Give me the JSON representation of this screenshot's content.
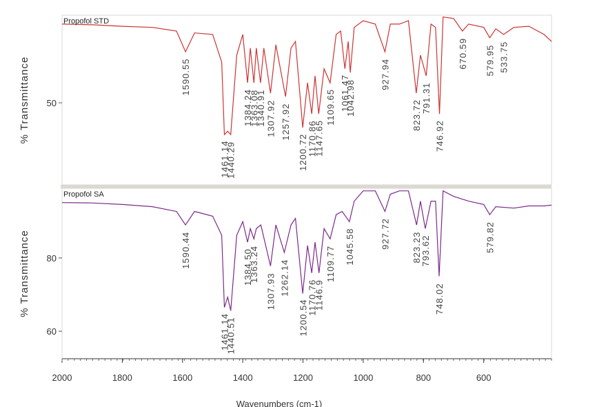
{
  "chart_data": [
    {
      "type": "line",
      "ylabel": "% Transmittance",
      "xlim": [
        2000,
        375
      ],
      "ylim": [
        27.8,
        73.7
      ],
      "yticks": [
        50
      ],
      "x": [
        2000,
        1900,
        1800,
        1700,
        1620,
        1590,
        1560,
        1500,
        1470,
        1461,
        1450,
        1440,
        1420,
        1400,
        1384,
        1375,
        1363,
        1355,
        1341,
        1330,
        1308,
        1290,
        1258,
        1240,
        1225,
        1201,
        1185,
        1171,
        1160,
        1148,
        1130,
        1110,
        1090,
        1075,
        1061,
        1050,
        1043,
        1030,
        1000,
        960,
        928,
        910,
        880,
        850,
        824,
        810,
        791,
        775,
        760,
        747,
        735,
        700,
        671,
        650,
        600,
        580,
        560,
        534,
        500,
        450,
        400,
        375
      ],
      "series": [
        {
          "name": "Propofol STD",
          "color": "#cc3333",
          "values": [
            71.3,
            71.1,
            70.7,
            70.4,
            69.4,
            63.8,
            68.9,
            68.5,
            61.0,
            41.4,
            42.3,
            41.4,
            62.9,
            68.5,
            55.4,
            64.8,
            55.4,
            64.8,
            55.4,
            64.8,
            52.6,
            65.7,
            51.7,
            64.8,
            66.6,
            43.3,
            55.4,
            47.0,
            57.3,
            47.0,
            59.2,
            55.4,
            68.5,
            69.4,
            59.2,
            66.6,
            58.2,
            70.4,
            72.2,
            71.3,
            63.8,
            71.3,
            71.3,
            72.2,
            52.6,
            62.9,
            57.3,
            71.3,
            70.4,
            47.0,
            73.2,
            72.8,
            69.4,
            71.3,
            70.4,
            67.6,
            70.0,
            68.5,
            70.4,
            70.7,
            68.5,
            66.6
          ]
        }
      ],
      "peaks": [
        1590.55,
        1461.14,
        1440.29,
        1384.24,
        1363.08,
        1340.91,
        1307.92,
        1257.92,
        1200.72,
        1170.86,
        1147.65,
        1109.65,
        1061.47,
        1042.98,
        927.94,
        823.72,
        791.31,
        746.92,
        670.59,
        579.95,
        533.75
      ]
    },
    {
      "type": "line",
      "ylabel": "% Transmittance",
      "xlabel": "Wavenumbers (cm-1)",
      "xlim": [
        2000,
        375
      ],
      "ylim": [
        52.5,
        99
      ],
      "yticks": [
        60,
        80
      ],
      "xticks": [
        2000,
        1800,
        1600,
        1400,
        1200,
        1000,
        800,
        600
      ],
      "x": [
        2000,
        1900,
        1800,
        1700,
        1620,
        1590,
        1560,
        1500,
        1470,
        1461,
        1450,
        1440,
        1420,
        1400,
        1384,
        1375,
        1363,
        1355,
        1340,
        1308,
        1290,
        1262,
        1240,
        1225,
        1201,
        1185,
        1171,
        1160,
        1147,
        1130,
        1110,
        1090,
        1070,
        1046,
        1030,
        1000,
        960,
        928,
        910,
        880,
        850,
        823,
        810,
        794,
        775,
        760,
        748,
        735,
        700,
        650,
        600,
        580,
        560,
        500,
        450,
        400,
        375
      ],
      "series": [
        {
          "name": "Propofol SA",
          "color": "#7a2a8a",
          "values": [
            95.1,
            95.0,
            94.6,
            94.0,
            92.7,
            89.0,
            92.7,
            91.4,
            86.2,
            66.5,
            69.3,
            65.6,
            86.2,
            89.9,
            84.3,
            88.0,
            85.2,
            88.0,
            89.0,
            77.8,
            89.0,
            81.5,
            89.0,
            90.8,
            70.3,
            83.4,
            75.9,
            84.3,
            75.9,
            88.0,
            85.2,
            91.8,
            92.7,
            89.9,
            95.5,
            98.3,
            98.3,
            92.7,
            97.4,
            98.3,
            98.3,
            89.0,
            95.5,
            88.0,
            95.5,
            95.5,
            75.0,
            98.3,
            96.8,
            95.5,
            94.6,
            91.8,
            94.0,
            93.6,
            94.2,
            94.2,
            94.4
          ]
        }
      ],
      "peaks": [
        1590.44,
        1461.14,
        1440.51,
        {
          "value": 1384.5,
          "label": "1384.50"
        },
        1363.24,
        1307.93,
        1262.14,
        1200.54,
        1170.76,
        1146.9,
        1109.77,
        1045.58,
        927.72,
        823.23,
        793.62,
        748.02,
        579.82
      ]
    }
  ]
}
